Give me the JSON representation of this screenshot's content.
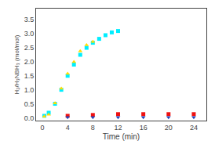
{
  "chart_data": {
    "type": "scatter",
    "xlabel": "Time (min)",
    "ylabel": "H₂/H₃NBH₃ (mol/mol)",
    "xlim": [
      -1,
      26
    ],
    "ylim": [
      -0.1,
      3.9
    ],
    "xticks": [
      0,
      4,
      8,
      12,
      16,
      20,
      24
    ],
    "yticks": [
      {
        "value": 0,
        "label": "0.0"
      },
      0.5,
      {
        "value": 1,
        "label": "1.0"
      },
      1.5,
      {
        "value": 2,
        "label": "2.0"
      },
      2.5,
      {
        "value": 3,
        "label": "3.0"
      },
      3.5
    ],
    "grid": false,
    "series": [
      {
        "x": [
          0.3,
          1,
          2,
          3,
          4,
          5,
          6,
          7,
          8,
          9,
          10,
          11,
          12
        ],
        "values": [
          0.07,
          0.18,
          0.5,
          1.0,
          1.5,
          1.9,
          2.25,
          2.5,
          2.68,
          2.82,
          2.95,
          3.05,
          3.1
        ],
        "color": "#00eeff",
        "marker": "square"
      },
      {
        "x": [
          0.3,
          1,
          2,
          3,
          4,
          5,
          6,
          7,
          8
        ],
        "values": [
          0.05,
          0.12,
          0.52,
          1.05,
          1.58,
          2.0,
          2.38,
          2.6,
          2.72
        ],
        "color": "#ffdd00",
        "marker": "triangle-up"
      },
      {
        "x": [
          4,
          8,
          12,
          16,
          20,
          24
        ],
        "values": [
          0.07,
          0.1,
          0.13,
          0.13,
          0.13,
          0.13
        ],
        "color": "#ee1111",
        "marker": "square"
      },
      {
        "x": [
          4,
          8,
          12,
          16,
          20,
          24
        ],
        "values": [
          0.02,
          0.02,
          0.02,
          0.02,
          0.02,
          0.02
        ],
        "color": "#2244bb",
        "marker": "triangle-down"
      }
    ]
  }
}
